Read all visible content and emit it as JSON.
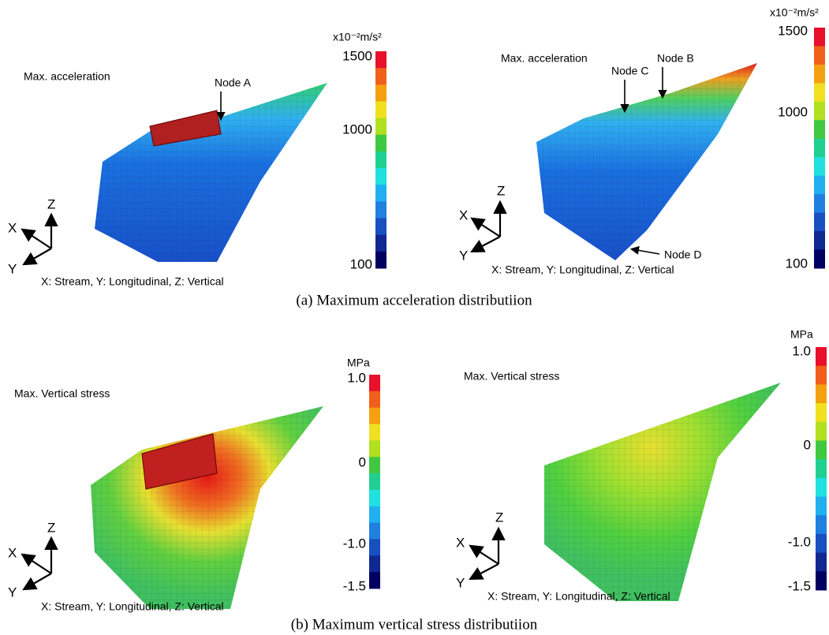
{
  "panels": [
    {
      "label": "Max. acceleration",
      "nodes": [
        "Node A"
      ],
      "axes": {
        "x": "X",
        "y": "Y",
        "z": "Z"
      },
      "legend": "X: Stream, Y: Longitudinal, Z: Vertical",
      "colorbar": {
        "unit": "x10⁻²m/s²",
        "ticks": [
          "1500",
          "1000",
          "100"
        ]
      }
    },
    {
      "label": "Max. acceleration",
      "nodes": [
        "Node C",
        "Node B",
        "Node D"
      ],
      "axes": {
        "x": "X",
        "y": "Y",
        "z": "Z"
      },
      "legend": "X: Stream, Y: Longitudinal, Z: Vertical",
      "colorbar": {
        "unit": "x10⁻²m/s²",
        "ticks": [
          "1500",
          "1000",
          "100"
        ]
      }
    },
    {
      "label": "Max. Vertical stress",
      "nodes": [],
      "axes": {
        "x": "X",
        "y": "Y",
        "z": "Z"
      },
      "legend": "X: Stream, Y: Longitudinal, Z: Vertical",
      "colorbar": {
        "unit": "MPa",
        "ticks": [
          "1.0",
          "0",
          "-1.0",
          "-1.5"
        ]
      }
    },
    {
      "label": "Max. Vertical stress",
      "nodes": [],
      "axes": {
        "x": "X",
        "y": "Y",
        "z": "Z"
      },
      "legend": "X: Stream, Y: Longitudinal, Z: Vertical",
      "colorbar": {
        "unit": "MPa",
        "ticks": [
          "1.0",
          "0",
          "-1.0",
          "-1.5"
        ]
      }
    }
  ],
  "captions": [
    "(a) Maximum acceleration distributiion",
    "(b) Maximum vertical stress distributiion"
  ]
}
